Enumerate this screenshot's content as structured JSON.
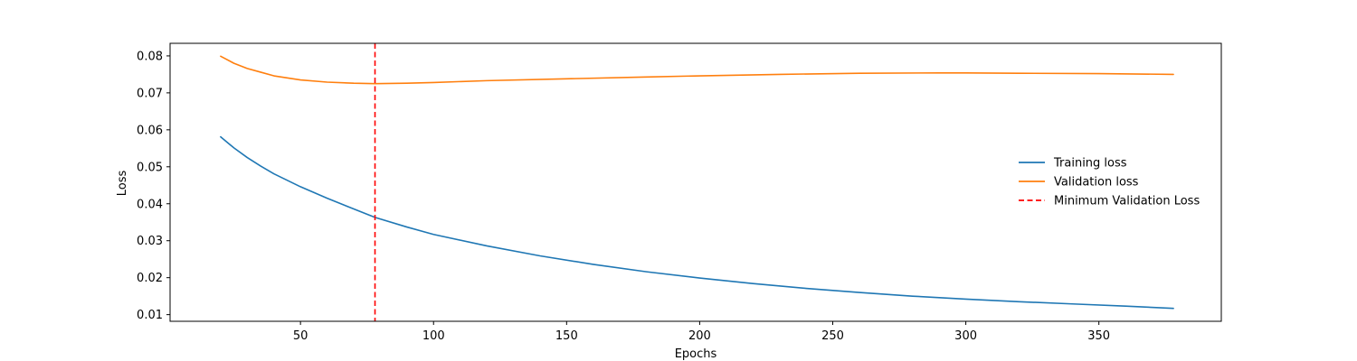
{
  "chart_data": {
    "type": "line",
    "title": "",
    "xlabel": "Epochs",
    "ylabel": "Loss",
    "xlim": [
      1,
      396
    ],
    "ylim": [
      0.0082,
      0.0834
    ],
    "xticks": [
      50,
      100,
      150,
      200,
      250,
      300,
      350
    ],
    "yticks": [
      0.01,
      0.02,
      0.03,
      0.04,
      0.05,
      0.06,
      0.07,
      0.08
    ],
    "ytick_labels": [
      "0.01",
      "0.02",
      "0.03",
      "0.04",
      "0.05",
      "0.06",
      "0.07",
      "0.08"
    ],
    "grid": false,
    "legend_position": "center-right",
    "series": [
      {
        "name": "Training loss",
        "color": "#1f77b4",
        "style": "solid",
        "x": [
          20,
          25,
          30,
          35,
          40,
          50,
          60,
          70,
          78,
          90,
          100,
          120,
          140,
          160,
          180,
          200,
          220,
          240,
          260,
          280,
          300,
          320,
          340,
          360,
          378
        ],
        "y": [
          0.0581,
          0.0551,
          0.0525,
          0.0502,
          0.0481,
          0.0446,
          0.0415,
          0.0386,
          0.0363,
          0.0337,
          0.0317,
          0.0286,
          0.0259,
          0.0236,
          0.0216,
          0.0199,
          0.0184,
          0.0171,
          0.016,
          0.015,
          0.0142,
          0.0135,
          0.0129,
          0.0123,
          0.0117
        ]
      },
      {
        "name": "Validation loss",
        "color": "#ff7f0e",
        "style": "solid",
        "x": [
          20,
          25,
          30,
          35,
          40,
          50,
          60,
          70,
          78,
          90,
          100,
          120,
          150,
          180,
          200,
          230,
          260,
          290,
          300,
          320,
          350,
          378
        ],
        "y": [
          0.0799,
          0.078,
          0.0766,
          0.0756,
          0.0746,
          0.0735,
          0.0729,
          0.0726,
          0.0725,
          0.0726,
          0.0728,
          0.0733,
          0.0738,
          0.0743,
          0.0746,
          0.075,
          0.0753,
          0.0754,
          0.0754,
          0.0753,
          0.0752,
          0.075
        ]
      }
    ],
    "vlines": [
      {
        "name": "Minimum Validation Loss",
        "x": 78,
        "color": "#ff0000",
        "style": "dashed"
      }
    ]
  }
}
